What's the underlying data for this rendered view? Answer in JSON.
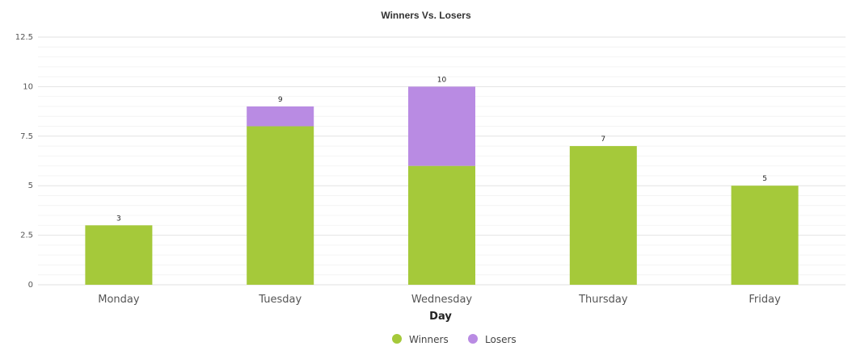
{
  "chart_data": {
    "type": "bar",
    "stacked": true,
    "title": "Winners Vs. Losers",
    "xlabel": "Day",
    "ylabel": "",
    "categories": [
      "Monday",
      "Tuesday",
      "Wednesday",
      "Thursday",
      "Friday"
    ],
    "series": [
      {
        "name": "Winners",
        "values": [
          3,
          8,
          6,
          7,
          5
        ],
        "color": "#a5c93a"
      },
      {
        "name": "Losers",
        "values": [
          0,
          1,
          4,
          0,
          0
        ],
        "color": "#b98be3"
      }
    ],
    "totals": [
      "3",
      "9",
      "10",
      "7",
      "5"
    ],
    "ylim": [
      0,
      12.5
    ],
    "yticks": [
      "0",
      "2.5",
      "5",
      "7.5",
      "10",
      "12.5"
    ],
    "grid": true,
    "legend_position": "bottom"
  }
}
